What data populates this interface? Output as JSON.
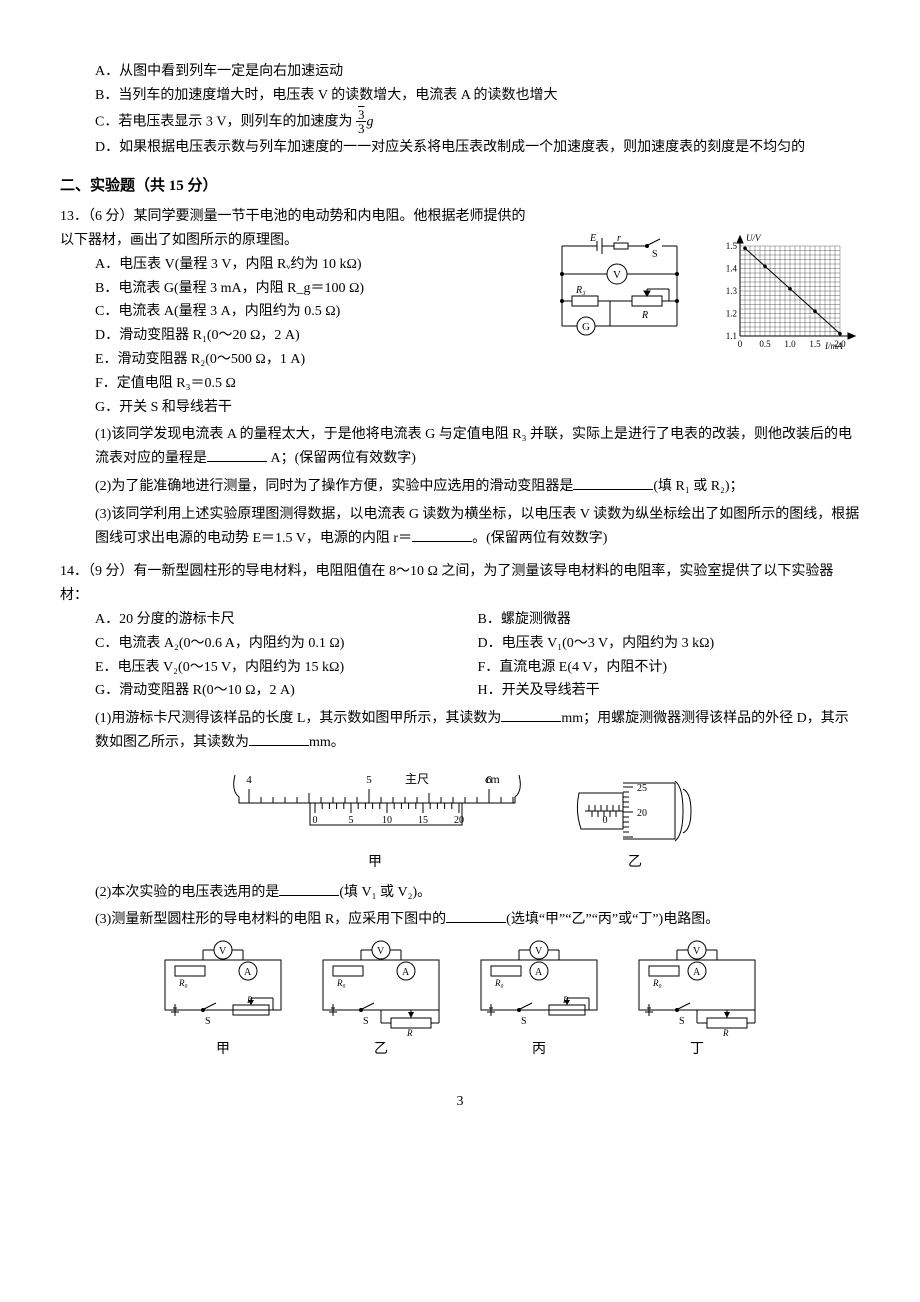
{
  "q12": {
    "opts": {
      "A": "A．从图中看到列车一定是向右加速运动",
      "B": "B．当列车的加速度增大时，电压表 V 的读数增大，电流表 A 的读数也增大",
      "C_pre": "C．若电压表显示 3 V，则列车的加速度为",
      "C_frac_num": "√3",
      "C_frac_den": "3",
      "C_post": "g",
      "D": "D．如果根据电压表示数与列车加速度的一一对应关系将电压表改制成一个加速度表，则加速度表的刻度是不均匀的"
    }
  },
  "section2": "二、实验题（共 15 分）",
  "q13": {
    "num": "13．（6 分）",
    "stem": "某同学要测量一节干电池的电动势和内电阻。他根据老师提供的以下器材，画出了如图所示的原理图。",
    "items": {
      "A": "A．电压表 V(量程 3 V，内阻 Rᵥ约为 10 kΩ)",
      "B": "B．电流表 G(量程 3 mA，内阻 R_g＝100 Ω)",
      "C": "C．电流表 A(量程 3 A，内阻约为 0.5 Ω)",
      "D": "D．滑动变阻器 R₁(0～20 Ω，2 A)",
      "E": "E．滑动变阻器 R₂(0～500 Ω，1 A)",
      "F": "F．定值电阻 R₃＝0.5 Ω",
      "G": "G．开关 S 和导线若干"
    },
    "sub1_a": "(1)该同学发现电流表 A 的量程太大，于是他将电流表 G 与定值电阻 R₃ 并联，实际上是进行了电表的改装，则他改装后的电流表对应的量程是",
    "sub1_b": " A；(保留两位有效数字)",
    "sub2_a": "(2)为了能准确地进行测量，同时为了操作方便，实验中应选用的滑动变阻器是",
    "sub2_b": "(填 R₁ 或 R₂)；",
    "sub3_a": "(3)该同学利用上述实验原理图测得数据，以电流表 G 读数为横坐标，以电压表 V 读数为纵坐标绘出了如图所示的图线，根据图线可求出电源的电动势 E＝1.5 V，电源的内阻 r＝",
    "sub3_b": "。(保留两位有效数字)",
    "circuit": {
      "E": "E",
      "r": "r",
      "S": "S",
      "V": "V",
      "R3": "R₃",
      "G": "G",
      "R": "R"
    },
    "graph": {
      "ylabel": "U/V",
      "xlabel": "I/mA",
      "yticks": [
        "1.1",
        "1.2",
        "1.3",
        "1.4",
        "1.5"
      ],
      "xticks": [
        "0",
        "0.5",
        "1.0",
        "1.5",
        "2.0"
      ],
      "points": [
        [
          0.1,
          1.49
        ],
        [
          0.5,
          1.41
        ],
        [
          1.0,
          1.31
        ],
        [
          1.5,
          1.21
        ],
        [
          2.0,
          1.11
        ]
      ],
      "grid_color": "#000",
      "bg": "#fff"
    }
  },
  "q14": {
    "num": "14．（9 分）",
    "stem": "有一新型圆柱形的导电材料，电阻阻值在 8～10 Ω 之间，为了测量该导电材料的电阻率，实验室提供了以下实验器材：",
    "itemsL": {
      "A": "A．20 分度的游标卡尺",
      "C": "C．电流表 A₂(0～0.6 A，内阻约为 0.1 Ω)",
      "E": "E．电压表 V₂(0～15 V，内阻约为 15 kΩ)",
      "G": "G．滑动变阻器 R(0～10 Ω，2 A)"
    },
    "itemsR": {
      "B": "B．螺旋测微器",
      "D": "D．电压表 V₁(0～3 V，内阻约为 3 kΩ)",
      "F": "F．直流电源 E(4 V，内阻不计)",
      "H": "H．开关及导线若干"
    },
    "sub1_a": "(1)用游标卡尺测得该样品的长度 L，其示数如图甲所示，其读数为",
    "sub1_b": "mm；用螺旋测微器测得该样品的外径 D，其示数如图乙所示，其读数为",
    "sub1_c": "mm。",
    "vernier": {
      "main_nums": [
        "4",
        "5",
        "6"
      ],
      "main_label": "主尺",
      "main_unit": "cm",
      "vern_nums": [
        "0",
        "5",
        "10",
        "15",
        "20"
      ],
      "label": "甲"
    },
    "micrometer": {
      "scale_vals": [
        "25",
        "20"
      ],
      "thimble_zero": "0",
      "label": "乙"
    },
    "sub2_a": "(2)本次实验的电压表选用的是",
    "sub2_b": "(填 V₁ 或 V₂)。",
    "sub3_a": "(3)测量新型圆柱形的导电材料的电阻 R，应采用下图中的",
    "sub3_b": "(选填“甲”“乙”“丙”或“丁”)电路图。",
    "circuits": {
      "V": "V",
      "A": "A",
      "R0": "R₀",
      "R": "R",
      "S": "S",
      "labels": [
        "甲",
        "乙",
        "丙",
        "丁"
      ]
    }
  },
  "page_number": "3"
}
